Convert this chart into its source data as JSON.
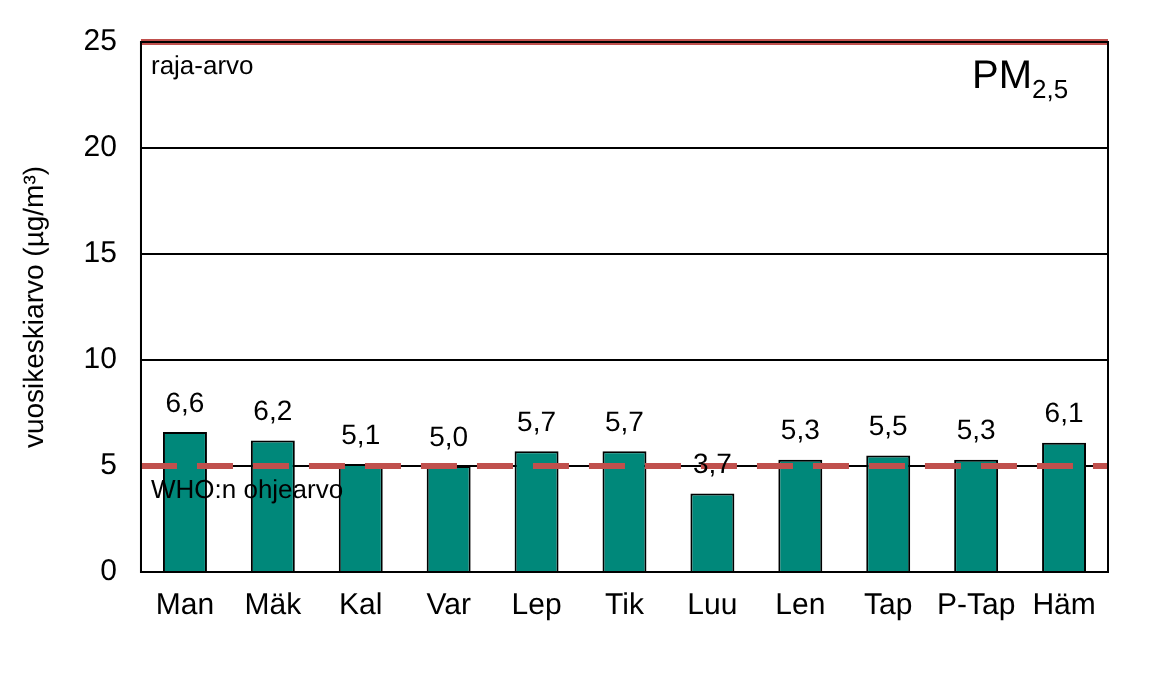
{
  "chart_data": {
    "type": "bar",
    "title": "PM$_{2,5}$",
    "ylabel": "vuosikeskiarvo (µg/m³)",
    "categories": [
      "Man",
      "Mäk",
      "Kal",
      "Var",
      "Lep",
      "Tik",
      "Luu",
      "Len",
      "Tap",
      "P-Tap",
      "Häm"
    ],
    "values": [
      6.6,
      6.2,
      5.1,
      5.0,
      5.7,
      5.7,
      3.7,
      5.3,
      5.5,
      5.3,
      6.1
    ],
    "value_labels": [
      "6,6",
      "6,2",
      "5,1",
      "5,0",
      "5,7",
      "5,7",
      "3,7",
      "5,3",
      "5,5",
      "5,3",
      "6,1"
    ],
    "color": "#00887a",
    "ylim": [
      0,
      25
    ],
    "yticks": [
      0,
      5,
      10,
      15,
      20,
      25
    ],
    "grid": "y",
    "legend": false,
    "ref_lines": [
      {
        "axis": "y",
        "value": 25,
        "label": "raja-arvo",
        "color": "#c0504d",
        "line_style": "solid"
      },
      {
        "axis": "y",
        "value": 5,
        "label": "WHO:n ohjearvo",
        "color": "#c0504d",
        "line_style": "dashed"
      }
    ]
  }
}
